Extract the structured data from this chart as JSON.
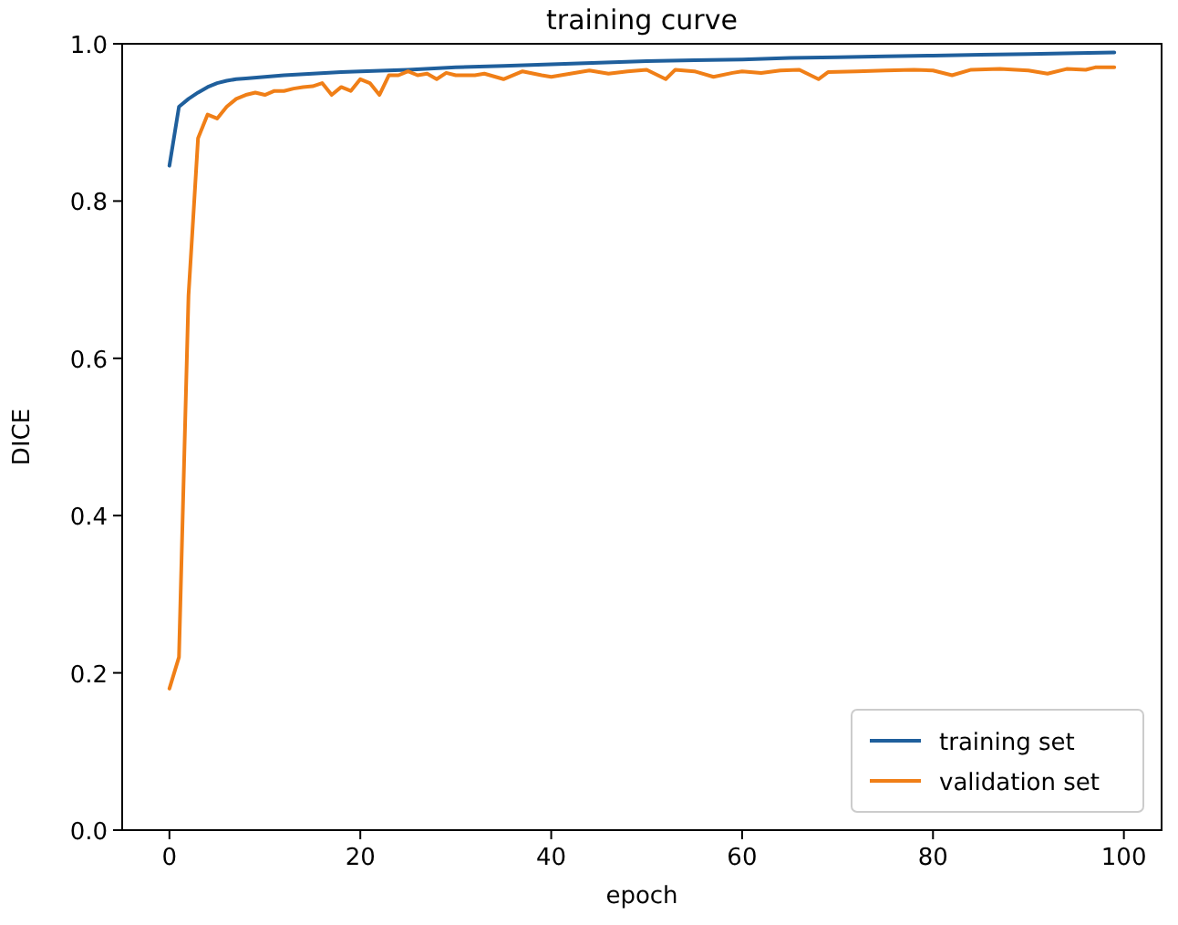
{
  "chart_data": {
    "type": "line",
    "title": "training curve",
    "xlabel": "epoch",
    "ylabel": "DICE",
    "xlim": [
      -4.95,
      103.95
    ],
    "ylim": [
      0,
      1
    ],
    "xticks": [
      0,
      20,
      40,
      60,
      80,
      100
    ],
    "yticks": [
      {
        "value": 0,
        "label": "0.0"
      },
      {
        "value": 0.2,
        "label": "0.2"
      },
      {
        "value": 0.4,
        "label": "0.4"
      },
      {
        "value": 0.6,
        "label": "0.6"
      },
      {
        "value": 0.8,
        "label": "0.8"
      },
      {
        "value": 1,
        "label": "1.0"
      }
    ],
    "legend": "bottom right",
    "grid": false,
    "marker": "none",
    "line_style": "solid",
    "series": [
      {
        "name": "training set",
        "color": "#1f5f9c",
        "x": [
          0,
          1,
          2,
          3,
          4,
          5,
          6,
          7,
          8,
          10,
          12,
          15,
          18,
          20,
          25,
          30,
          35,
          40,
          45,
          50,
          55,
          60,
          65,
          70,
          75,
          80,
          85,
          90,
          95,
          99
        ],
        "values": [
          0.845,
          0.92,
          0.93,
          0.938,
          0.945,
          0.95,
          0.953,
          0.955,
          0.956,
          0.958,
          0.96,
          0.962,
          0.964,
          0.965,
          0.967,
          0.97,
          0.972,
          0.974,
          0.976,
          0.978,
          0.979,
          0.98,
          0.982,
          0.983,
          0.984,
          0.985,
          0.986,
          0.987,
          0.988,
          0.989
        ]
      },
      {
        "name": "validation set",
        "color": "#f07f17",
        "x": [
          0,
          1,
          2,
          3,
          4,
          5,
          6,
          7,
          8,
          9,
          10,
          11,
          12,
          13,
          14,
          15,
          16,
          17,
          18,
          19,
          20,
          21,
          22,
          23,
          24,
          25,
          26,
          27,
          28,
          29,
          30,
          32,
          33,
          35,
          37,
          39,
          40,
          42,
          44,
          46,
          48,
          50,
          52,
          53,
          55,
          57,
          59,
          60,
          62,
          64,
          66,
          68,
          69,
          72,
          75,
          78,
          80,
          82,
          84,
          87,
          90,
          92,
          94,
          96,
          97,
          99
        ],
        "values": [
          0.18,
          0.22,
          0.68,
          0.88,
          0.91,
          0.905,
          0.92,
          0.93,
          0.935,
          0.938,
          0.935,
          0.94,
          0.94,
          0.943,
          0.945,
          0.946,
          0.95,
          0.935,
          0.945,
          0.94,
          0.955,
          0.95,
          0.935,
          0.96,
          0.96,
          0.965,
          0.96,
          0.962,
          0.955,
          0.963,
          0.96,
          0.96,
          0.962,
          0.955,
          0.965,
          0.96,
          0.958,
          0.962,
          0.966,
          0.962,
          0.965,
          0.967,
          0.955,
          0.967,
          0.965,
          0.958,
          0.963,
          0.965,
          0.963,
          0.966,
          0.967,
          0.955,
          0.964,
          0.965,
          0.966,
          0.967,
          0.966,
          0.96,
          0.967,
          0.968,
          0.966,
          0.962,
          0.968,
          0.967,
          0.97,
          0.97
        ]
      }
    ]
  }
}
